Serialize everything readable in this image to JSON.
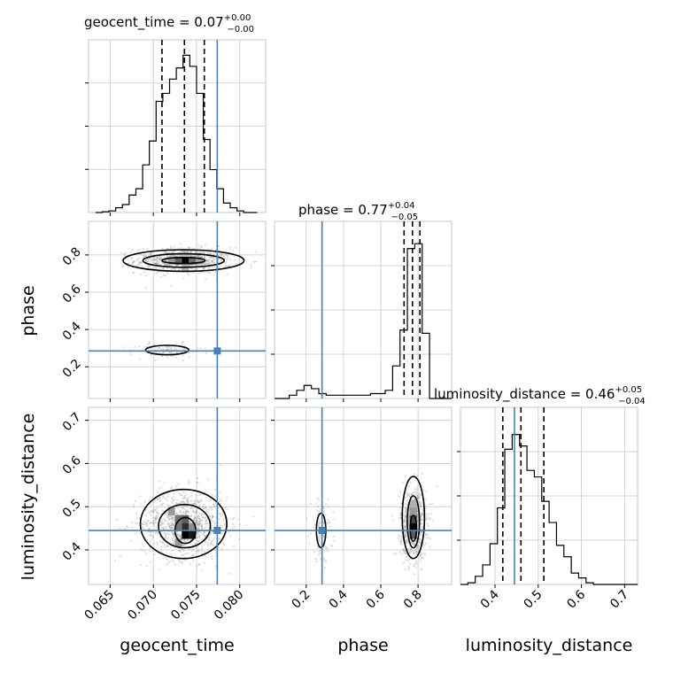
{
  "colors": {
    "truth": "#4682b4",
    "hist": "#000000",
    "grid": "#c8c8c8",
    "points": "#9a9a9a"
  },
  "titles": {
    "geocent_time": {
      "lead": "geocent_time = 0.07",
      "plus": "+0.00",
      "minus": "−0.00"
    },
    "phase": {
      "lead": "phase = 0.77",
      "plus": "+0.04",
      "minus": "−0.05"
    },
    "luminosity_distance": {
      "lead": "luminosity_distance = 0.46",
      "plus": "+0.05",
      "minus": "−0.04"
    }
  },
  "axis_labels": {
    "geocent_time": "geocent_time",
    "phase": "phase",
    "luminosity_distance": "luminosity_distance"
  },
  "chart_data": {
    "type": "scatter",
    "variant": "corner-plot",
    "grid": true,
    "parameters": [
      {
        "name": "geocent_time",
        "range": [
          0.0625,
          0.083
        ],
        "ticks": [
          0.065,
          0.07,
          0.075,
          0.08
        ],
        "tick_labels": [
          "0.065",
          "0.070",
          "0.075",
          "0.080"
        ],
        "truth": 0.0774,
        "quantiles": [
          0.071,
          0.0736,
          0.0759
        ],
        "hist_edges_start": 0.0633,
        "hist_bin_width": 0.00078,
        "hist_counts": [
          0.0,
          0.005,
          0.01,
          0.03,
          0.05,
          0.11,
          0.15,
          0.3,
          0.45,
          0.7,
          0.75,
          0.84,
          0.91,
          0.99,
          0.92,
          0.75,
          0.46,
          0.27,
          0.15,
          0.06,
          0.03,
          0.01,
          0.0,
          0.0
        ]
      },
      {
        "name": "phase",
        "range": [
          0.03,
          0.98
        ],
        "ticks": [
          0.2,
          0.4,
          0.6,
          0.8
        ],
        "tick_labels": [
          "0.2",
          "0.4",
          "0.6",
          "0.8"
        ],
        "truth": 0.285,
        "quantiles": [
          0.725,
          0.77,
          0.81
        ],
        "hist_edges_start": 0.03,
        "hist_bin_width": 0.0396,
        "hist_counts": [
          0.0,
          0.0,
          0.02,
          0.05,
          0.08,
          0.06,
          0.03,
          0.02,
          0.02,
          0.02,
          0.02,
          0.02,
          0.02,
          0.03,
          0.03,
          0.05,
          0.2,
          0.42,
          0.92,
          0.95,
          0.4,
          0.0,
          0.0,
          0.0
        ]
      },
      {
        "name": "luminosity_distance",
        "range": [
          0.32,
          0.73
        ],
        "ticks": [
          0.4,
          0.5,
          0.6,
          0.7
        ],
        "tick_labels": [
          "0.4",
          "0.5",
          "0.6",
          "0.7"
        ],
        "truth": 0.445,
        "quantiles": [
          0.418,
          0.46,
          0.513
        ],
        "hist_edges_start": 0.32,
        "hist_bin_width": 0.0171,
        "hist_counts": [
          0.0,
          0.01,
          0.05,
          0.12,
          0.25,
          0.47,
          0.83,
          0.92,
          0.85,
          0.7,
          0.66,
          0.51,
          0.38,
          0.24,
          0.17,
          0.07,
          0.04,
          0.01,
          0.0,
          0.0,
          0.0,
          0.0,
          0.0,
          0.0
        ]
      }
    ],
    "pairs": [
      {
        "x": "geocent_time",
        "y": "phase",
        "modes": [
          {
            "cx": 0.0735,
            "cy": 0.77,
            "sx": 0.0028,
            "sy": 0.035,
            "weight": 0.85
          },
          {
            "cx": 0.0716,
            "cy": 0.285,
            "sx": 0.002,
            "sy": 0.02,
            "weight": 0.12
          }
        ],
        "contours": [
          {
            "cx": 0.0735,
            "cy": 0.77,
            "rx": 0.0025,
            "ry": 0.016
          },
          {
            "cx": 0.0735,
            "cy": 0.77,
            "rx": 0.0047,
            "ry": 0.036
          },
          {
            "cx": 0.0735,
            "cy": 0.77,
            "rx": 0.007,
            "ry": 0.058
          },
          {
            "cx": 0.0716,
            "cy": 0.29,
            "rx": 0.0025,
            "ry": 0.025
          }
        ],
        "density_cells": [
          {
            "x": 0.0737,
            "y": 0.77,
            "v": 1.0
          },
          {
            "x": 0.0729,
            "y": 0.77,
            "v": 0.6
          },
          {
            "x": 0.0745,
            "y": 0.77,
            "v": 0.55
          },
          {
            "x": 0.0721,
            "y": 0.77,
            "v": 0.35
          },
          {
            "x": 0.0753,
            "y": 0.77,
            "v": 0.3
          },
          {
            "x": 0.0737,
            "y": 0.73,
            "v": 0.25
          },
          {
            "x": 0.0737,
            "y": 0.81,
            "v": 0.2
          }
        ]
      },
      {
        "x": "geocent_time",
        "y": "luminosity_distance",
        "modes": [
          {
            "cx": 0.0736,
            "cy": 0.46,
            "sx": 0.0025,
            "sy": 0.04,
            "weight": 1.0
          }
        ],
        "contours": [
          {
            "cx": 0.0737,
            "cy": 0.445,
            "rx": 0.0012,
            "ry": 0.03
          },
          {
            "cx": 0.0736,
            "cy": 0.455,
            "rx": 0.003,
            "ry": 0.05
          },
          {
            "cx": 0.0735,
            "cy": 0.46,
            "rx": 0.005,
            "ry": 0.08
          }
        ],
        "density_cells": [
          {
            "x": 0.0737,
            "y": 0.435,
            "v": 1.0
          },
          {
            "x": 0.0745,
            "y": 0.435,
            "v": 0.9
          },
          {
            "x": 0.0737,
            "y": 0.453,
            "v": 0.8
          },
          {
            "x": 0.0737,
            "y": 0.471,
            "v": 0.6
          },
          {
            "x": 0.0729,
            "y": 0.471,
            "v": 0.5
          },
          {
            "x": 0.0729,
            "y": 0.453,
            "v": 0.5
          },
          {
            "x": 0.0721,
            "y": 0.489,
            "v": 0.35
          },
          {
            "x": 0.0745,
            "y": 0.453,
            "v": 0.4
          },
          {
            "x": 0.0729,
            "y": 0.417,
            "v": 0.35
          }
        ]
      },
      {
        "x": "phase",
        "y": "luminosity_distance",
        "modes": [
          {
            "cx": 0.775,
            "cy": 0.46,
            "sx": 0.035,
            "sy": 0.04,
            "weight": 0.85
          },
          {
            "cx": 0.285,
            "cy": 0.445,
            "sx": 0.03,
            "sy": 0.035,
            "weight": 0.12
          }
        ],
        "contours": [
          {
            "cx": 0.775,
            "cy": 0.45,
            "rx": 0.017,
            "ry": 0.03
          },
          {
            "cx": 0.775,
            "cy": 0.465,
            "rx": 0.033,
            "ry": 0.06
          },
          {
            "cx": 0.775,
            "cy": 0.475,
            "rx": 0.06,
            "ry": 0.095
          },
          {
            "cx": 0.28,
            "cy": 0.445,
            "rx": 0.025,
            "ry": 0.04
          }
        ],
        "density_cells": [
          {
            "x": 0.775,
            "y": 0.453,
            "v": 1.0
          },
          {
            "x": 0.775,
            "y": 0.471,
            "v": 0.7
          },
          {
            "x": 0.775,
            "y": 0.435,
            "v": 0.6
          },
          {
            "x": 0.775,
            "y": 0.489,
            "v": 0.35
          },
          {
            "x": 0.775,
            "y": 0.507,
            "v": 0.25
          }
        ]
      }
    ]
  }
}
